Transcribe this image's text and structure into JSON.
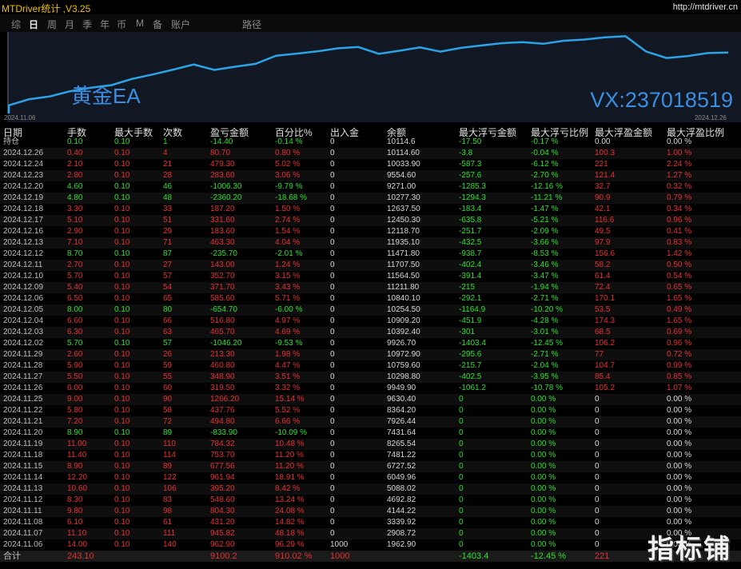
{
  "app": {
    "title": "MTDriver统计 ,V3.25",
    "url": "http://mtdriver.cn"
  },
  "tabs": [
    {
      "label": "综",
      "active": false
    },
    {
      "label": "日",
      "active": true
    },
    {
      "label": "周",
      "active": false
    },
    {
      "label": "月",
      "active": false
    },
    {
      "label": "季",
      "active": false
    },
    {
      "label": "年",
      "active": false
    },
    {
      "label": "币",
      "active": false
    },
    {
      "label": "M",
      "active": false
    },
    {
      "label": "备",
      "active": false
    },
    {
      "label": "账户",
      "active": false
    },
    {
      "label": "路径",
      "active": false
    }
  ],
  "chart": {
    "title": "黄金EA",
    "vx": "VX:237018519",
    "date_start": "2024.11.06",
    "date_end": "2024.12.26",
    "line_color": "#2aa4e6"
  },
  "chart_data": {
    "type": "line",
    "x": [
      "2024.11.06",
      "2024.11.07",
      "2024.11.08",
      "2024.11.11",
      "2024.11.12",
      "2024.11.13",
      "2024.11.14",
      "2024.11.15",
      "2024.11.18",
      "2024.11.19",
      "2024.11.20",
      "2024.11.21",
      "2024.11.22",
      "2024.11.25",
      "2024.11.26",
      "2024.11.27",
      "2024.11.28",
      "2024.11.29",
      "2024.12.02",
      "2024.12.03",
      "2024.12.04",
      "2024.12.05",
      "2024.12.06",
      "2024.12.09",
      "2024.12.10",
      "2024.12.11",
      "2024.12.12",
      "2024.12.13",
      "2024.12.16",
      "2024.12.17",
      "2024.12.18",
      "2024.12.19",
      "2024.12.20",
      "2024.12.23",
      "2024.12.24",
      "2024.12.26"
    ],
    "series": [
      {
        "values": [
          1962.9,
          2908.72,
          3339.92,
          4144.22,
          4692.82,
          5088.02,
          6049.96,
          6727.52,
          7481.22,
          8265.54,
          7431.64,
          7926.44,
          8364.2,
          9630.4,
          9949.9,
          10298.8,
          10759.6,
          10972.9,
          9926.7,
          10392.4,
          10909.2,
          10254.5,
          10840.1,
          11211.8,
          11564.5,
          11707.5,
          11471.8,
          11935.1,
          12118.7,
          12450.3,
          12637.5,
          10277.3,
          9271.0,
          9554.6,
          10033.9,
          10114.6
        ]
      }
    ]
  },
  "columns": [
    "日期",
    "手数",
    "最大手数",
    "次数",
    "盈亏金额",
    "百分比%",
    "出入金",
    "余额",
    "最大浮亏金额",
    "最大浮亏比例",
    "最大浮盈金额",
    "最大浮盈比例"
  ],
  "rows": [
    [
      "持仓",
      "0.10",
      "0.10",
      "1",
      "-14.40",
      "-0.14 %",
      "0",
      "10114.6",
      "-17.50",
      "-0.17 %",
      "0.00",
      "0.00 %"
    ],
    [
      "2024.12.26",
      "0.40",
      "0.10",
      "4",
      "80.70",
      "0.80 %",
      "0",
      "10114.60",
      "-3.8",
      "-0.04 %",
      "100.3",
      "1.00 %"
    ],
    [
      "2024.12.24",
      "2.10",
      "0.10",
      "21",
      "479.30",
      "5.02 %",
      "0",
      "10033.90",
      "-587.3",
      "-6.12 %",
      "221",
      "2.24 %"
    ],
    [
      "2024.12.23",
      "2.80",
      "0.10",
      "28",
      "283.60",
      "3.06 %",
      "0",
      "9554.60",
      "-257.6",
      "-2.70 %",
      "121.4",
      "1.27 %"
    ],
    [
      "2024.12.20",
      "4.60",
      "0.10",
      "46",
      "-1006.30",
      "-9.79 %",
      "0",
      "9271.00",
      "-1285.3",
      "-12.16 %",
      "32.7",
      "0.32 %"
    ],
    [
      "2024.12.19",
      "4.80",
      "0.10",
      "48",
      "-2360.20",
      "-18.68 %",
      "0",
      "10277.30",
      "-1294.3",
      "-11.21 %",
      "90.9",
      "0.79 %"
    ],
    [
      "2024.12.18",
      "3.30",
      "0.10",
      "33",
      "187.20",
      "1.50 %",
      "0",
      "12637.50",
      "-183.4",
      "-1.47 %",
      "42.1",
      "0.34 %"
    ],
    [
      "2024.12.17",
      "5.10",
      "0.10",
      "51",
      "331.60",
      "2.74 %",
      "0",
      "12450.30",
      "-635.8",
      "-5.21 %",
      "116.6",
      "0.96 %"
    ],
    [
      "2024.12.16",
      "2.90",
      "0.10",
      "29",
      "183.60",
      "1.54 %",
      "0",
      "12118.70",
      "-251.7",
      "-2.09 %",
      "49.5",
      "0.41 %"
    ],
    [
      "2024.12.13",
      "7.10",
      "0.10",
      "71",
      "463.30",
      "4.04 %",
      "0",
      "11935.10",
      "-432.5",
      "-3.66 %",
      "97.9",
      "0.83 %"
    ],
    [
      "2024.12.12",
      "8.70",
      "0.10",
      "87",
      "-235.70",
      "-2.01 %",
      "0",
      "11471.80",
      "-938.7",
      "-8.53 %",
      "156.6",
      "1.42 %"
    ],
    [
      "2024.12.11",
      "2.70",
      "0.10",
      "27",
      "143.00",
      "1.24 %",
      "0",
      "11707.50",
      "-402.4",
      "-3.46 %",
      "58.2",
      "0.50 %"
    ],
    [
      "2024.12.10",
      "5.70",
      "0.10",
      "57",
      "352.70",
      "3.15 %",
      "0",
      "11564.50",
      "-391.4",
      "-3.47 %",
      "61.4",
      "0.54 %"
    ],
    [
      "2024.12.09",
      "5.40",
      "0.10",
      "54",
      "371.70",
      "3.43 %",
      "0",
      "11211.80",
      "-215",
      "-1.94 %",
      "72.4",
      "0.65 %"
    ],
    [
      "2024.12.06",
      "6.50",
      "0.10",
      "65",
      "585.60",
      "5.71 %",
      "0",
      "10840.10",
      "-292.1",
      "-2.71 %",
      "170.1",
      "1.65 %"
    ],
    [
      "2024.12.05",
      "8.00",
      "0.10",
      "80",
      "-654.70",
      "-6.00 %",
      "0",
      "10254.50",
      "-1164.9",
      "-10.20 %",
      "53.5",
      "0.49 %"
    ],
    [
      "2024.12.04",
      "6.60",
      "0.10",
      "66",
      "516.80",
      "4.97 %",
      "0",
      "10909.20",
      "-451.9",
      "-4.28 %",
      "174.3",
      "1.65 %"
    ],
    [
      "2024.12.03",
      "6.30",
      "0.10",
      "63",
      "465.70",
      "4.69 %",
      "0",
      "10392.40",
      "-301",
      "-3.01 %",
      "68.5",
      "0.69 %"
    ],
    [
      "2024.12.02",
      "5.70",
      "0.10",
      "57",
      "-1046.20",
      "-9.53 %",
      "0",
      "9926.70",
      "-1403.4",
      "-12.45 %",
      "106.2",
      "0.96 %"
    ],
    [
      "2024.11.29",
      "2.60",
      "0.10",
      "26",
      "213.30",
      "1.98 %",
      "0",
      "10972.90",
      "-295.6",
      "-2.71 %",
      "77",
      "0.72 %"
    ],
    [
      "2024.11.28",
      "5.90",
      "0.10",
      "59",
      "460.80",
      "4.47 %",
      "0",
      "10759.60",
      "-215.7",
      "-2.04 %",
      "104.7",
      "0.99 %"
    ],
    [
      "2024.11.27",
      "5.50",
      "0.10",
      "55",
      "348.90",
      "3.51 %",
      "0",
      "10298.80",
      "-402.5",
      "-3.95 %",
      "85.4",
      "0.85 %"
    ],
    [
      "2024.11.26",
      "6.00",
      "0.10",
      "60",
      "319.50",
      "3.32 %",
      "0",
      "9949.90",
      "-1061.2",
      "-10.78 %",
      "105.2",
      "1.07 %"
    ],
    [
      "2024.11.25",
      "9.00",
      "0.10",
      "90",
      "1266.20",
      "15.14 %",
      "0",
      "9630.40",
      "0",
      "0.00 %",
      "0",
      "0.00 %"
    ],
    [
      "2024.11.22",
      "5.80",
      "0.10",
      "58",
      "437.76",
      "5.52 %",
      "0",
      "8364.20",
      "0",
      "0.00 %",
      "0",
      "0.00 %"
    ],
    [
      "2024.11.21",
      "7.20",
      "0.10",
      "72",
      "494.80",
      "6.66 %",
      "0",
      "7926.44",
      "0",
      "0.00 %",
      "0",
      "0.00 %"
    ],
    [
      "2024.11.20",
      "8.90",
      "0.10",
      "89",
      "-833.90",
      "-10.09 %",
      "0",
      "7431.64",
      "0",
      "0.00 %",
      "0",
      "0.00 %"
    ],
    [
      "2024.11.19",
      "11.00",
      "0.10",
      "110",
      "784.32",
      "10.48 %",
      "0",
      "8265.54",
      "0",
      "0.00 %",
      "0",
      "0.00 %"
    ],
    [
      "2024.11.18",
      "11.40",
      "0.10",
      "114",
      "753.70",
      "11.20 %",
      "0",
      "7481.22",
      "0",
      "0.00 %",
      "0",
      "0.00 %"
    ],
    [
      "2024.11.15",
      "8.90",
      "0.10",
      "89",
      "677.56",
      "11.20 %",
      "0",
      "6727.52",
      "0",
      "0.00 %",
      "0",
      "0.00 %"
    ],
    [
      "2024.11.14",
      "12.20",
      "0.10",
      "122",
      "961.94",
      "18.91 %",
      "0",
      "6049.96",
      "0",
      "0.00 %",
      "0",
      "0.00 %"
    ],
    [
      "2024.11.13",
      "10.60",
      "0.10",
      "106",
      "395.20",
      "8.42 %",
      "0",
      "5088.02",
      "0",
      "0.00 %",
      "0",
      "0.00 %"
    ],
    [
      "2024.11.12",
      "8.30",
      "0.10",
      "83",
      "548.60",
      "13.24 %",
      "0",
      "4692.82",
      "0",
      "0.00 %",
      "0",
      "0.00 %"
    ],
    [
      "2024.11.11",
      "9.80",
      "0.10",
      "98",
      "804.30",
      "24.08 %",
      "0",
      "4144.22",
      "0",
      "0.00 %",
      "0",
      "0.00 %"
    ],
    [
      "2024.11.08",
      "6.10",
      "0.10",
      "61",
      "431.20",
      "14.82 %",
      "0",
      "3339.92",
      "0",
      "0.00 %",
      "0",
      "0.00 %"
    ],
    [
      "2024.11.07",
      "11.10",
      "0.10",
      "111",
      "945.82",
      "48.18 %",
      "0",
      "2908.72",
      "0",
      "0.00 %",
      "0",
      "0.00 %"
    ],
    [
      "2024.11.06",
      "14.00",
      "0.10",
      "140",
      "962.90",
      "96.29 %",
      "1000",
      "1962.90",
      "0",
      "0.00 %",
      "0",
      "0.00 %"
    ]
  ],
  "total": [
    "合计",
    "243.10",
    "",
    "",
    "9100.2",
    "910.02 %",
    "1000",
    "",
    "-1403.4",
    "-12.45 %",
    "221",
    ""
  ],
  "watermark": "指标铺",
  "colors": {
    "positive": "#e83030",
    "negative": "#2de02d",
    "neutral": "#d8d8d8",
    "accent": "#3a8ee0"
  }
}
